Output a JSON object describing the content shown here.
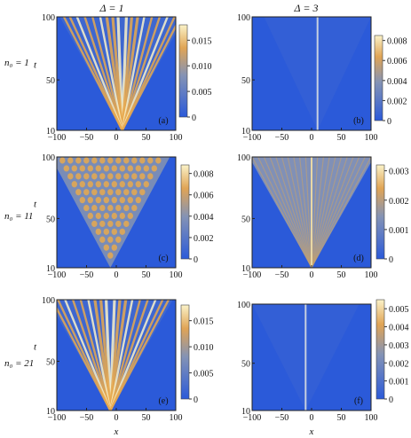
{
  "header": {
    "col1": "Δ = 1",
    "col2": "Δ = 3"
  },
  "rows": [
    {
      "label": "n₀ = 1"
    },
    {
      "label": "n₀ = 11"
    },
    {
      "label": "n₀ = 21"
    }
  ],
  "axis_labels": {
    "x": "x",
    "t": "t"
  },
  "chart_data": [
    {
      "type": "heatmap",
      "panel": "(a)",
      "delta": 1,
      "n0": 1,
      "source_x": 10,
      "pattern": "ballistic",
      "x_ticks": [
        -100,
        -50,
        0,
        50,
        100
      ],
      "y_ticks": [
        10,
        50,
        100
      ],
      "xlim": [
        -100,
        100
      ],
      "ylim": [
        10,
        100
      ],
      "colorbar_ticks": [
        "0",
        "0.005",
        "0.010",
        "0.015"
      ],
      "colorbar_range": [
        0,
        0.018
      ],
      "xlabel": "",
      "ylabel": "t"
    },
    {
      "type": "heatmap",
      "panel": "(b)",
      "delta": 3,
      "n0": 1,
      "source_x": 10,
      "pattern": "localized",
      "x_ticks": [
        -100,
        -50,
        0,
        50,
        100
      ],
      "y_ticks": [
        10,
        50,
        100
      ],
      "xlim": [
        -100,
        100
      ],
      "ylim": [
        10,
        100
      ],
      "colorbar_ticks": [
        "0",
        "0.002",
        "0.004",
        "0.006",
        "0.008"
      ],
      "colorbar_range": [
        0,
        0.0085
      ],
      "xlabel": "",
      "ylabel": ""
    },
    {
      "type": "heatmap",
      "panel": "(c)",
      "delta": 1,
      "n0": 11,
      "source_x": -10,
      "pattern": "ballistic-filled",
      "x_ticks": [
        -100,
        -50,
        0,
        50,
        100
      ],
      "y_ticks": [
        10,
        50,
        100
      ],
      "xlim": [
        -100,
        100
      ],
      "ylim": [
        10,
        100
      ],
      "colorbar_ticks": [
        "0",
        "0.002",
        "0.004",
        "0.006",
        "0.008"
      ],
      "colorbar_range": [
        0,
        0.0088
      ],
      "xlabel": "",
      "ylabel": "t"
    },
    {
      "type": "heatmap",
      "panel": "(d)",
      "delta": 3,
      "n0": 11,
      "source_x": 0,
      "pattern": "diffusive-filled",
      "x_ticks": [
        -100,
        -50,
        0,
        50,
        100
      ],
      "y_ticks": [
        10,
        50,
        100
      ],
      "xlim": [
        -100,
        100
      ],
      "ylim": [
        10,
        100
      ],
      "colorbar_ticks": [
        "0",
        "0.001",
        "0.002",
        "0.003"
      ],
      "colorbar_range": [
        0,
        0.0032
      ],
      "xlabel": "",
      "ylabel": ""
    },
    {
      "type": "heatmap",
      "panel": "(e)",
      "delta": 1,
      "n0": 21,
      "source_x": -10,
      "pattern": "ballistic",
      "x_ticks": [
        -100,
        -50,
        0,
        50,
        100
      ],
      "y_ticks": [
        10,
        50,
        100
      ],
      "xlim": [
        -100,
        100
      ],
      "ylim": [
        10,
        100
      ],
      "colorbar_ticks": [
        "0",
        "0.005",
        "0.010",
        "0.015"
      ],
      "colorbar_range": [
        0,
        0.018
      ],
      "xlabel": "x",
      "ylabel": "t"
    },
    {
      "type": "heatmap",
      "panel": "(f)",
      "delta": 3,
      "n0": 21,
      "source_x": -10,
      "pattern": "localized",
      "x_ticks": [
        -100,
        -50,
        0,
        50,
        100
      ],
      "y_ticks": [
        10,
        50,
        100
      ],
      "xlim": [
        -100,
        100
      ],
      "ylim": [
        10,
        100
      ],
      "colorbar_ticks": [
        "0",
        "0.001",
        "0.002",
        "0.003",
        "0.004",
        "0.005"
      ],
      "colorbar_range": [
        0,
        0.0055
      ],
      "xlabel": "x",
      "ylabel": ""
    }
  ],
  "colors": {
    "low": "#2b5ad9",
    "mid": "#7d8fb5",
    "high": "#e8a94e",
    "top": "#fbf2c8"
  }
}
